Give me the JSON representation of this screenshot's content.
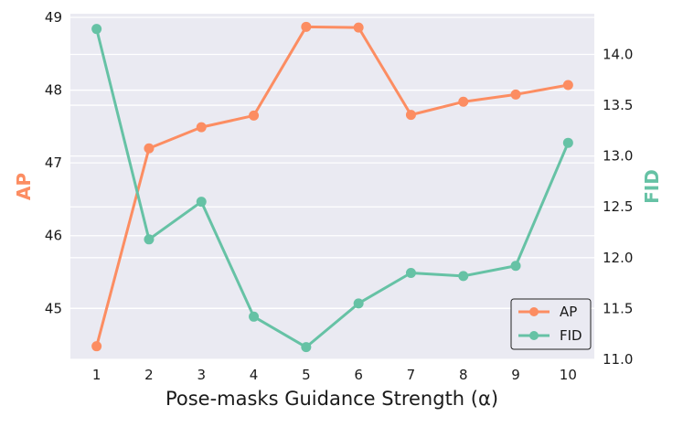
{
  "chart_data": {
    "type": "line",
    "x": [
      1,
      2,
      3,
      4,
      5,
      6,
      7,
      8,
      9,
      10
    ],
    "xlabel": "Pose-masks Guidance Strength (α)",
    "series": [
      {
        "name": "AP",
        "axis": "left",
        "color": "#fc8d62",
        "values": [
          44.48,
          47.2,
          47.49,
          47.65,
          48.87,
          48.86,
          47.66,
          47.84,
          47.94,
          48.07
        ]
      },
      {
        "name": "FID",
        "axis": "right",
        "color": "#66c2a5",
        "values": [
          14.25,
          12.18,
          12.55,
          11.42,
          11.12,
          11.55,
          11.85,
          11.82,
          11.92,
          13.13
        ]
      }
    ],
    "y_left": {
      "label": "AP",
      "color": "#fc8d62",
      "lim": [
        44.3,
        49.05
      ],
      "ticks": [
        "45",
        "46",
        "47",
        "48",
        "49"
      ]
    },
    "y_right": {
      "label": "FID",
      "color": "#66c2a5",
      "lim": [
        11.0,
        14.4
      ],
      "ticks": [
        "11.0",
        "11.5",
        "12.0",
        "12.5",
        "13.0",
        "13.5",
        "14.0"
      ]
    },
    "x_ticks": [
      "1",
      "2",
      "3",
      "4",
      "5",
      "6",
      "7",
      "8",
      "9",
      "10"
    ],
    "xlim": [
      0.5,
      10.5
    ],
    "grid": true,
    "legend": {
      "placement": "lower-right",
      "entries": [
        "AP",
        "FID"
      ]
    },
    "background": "#eaeaf2"
  }
}
